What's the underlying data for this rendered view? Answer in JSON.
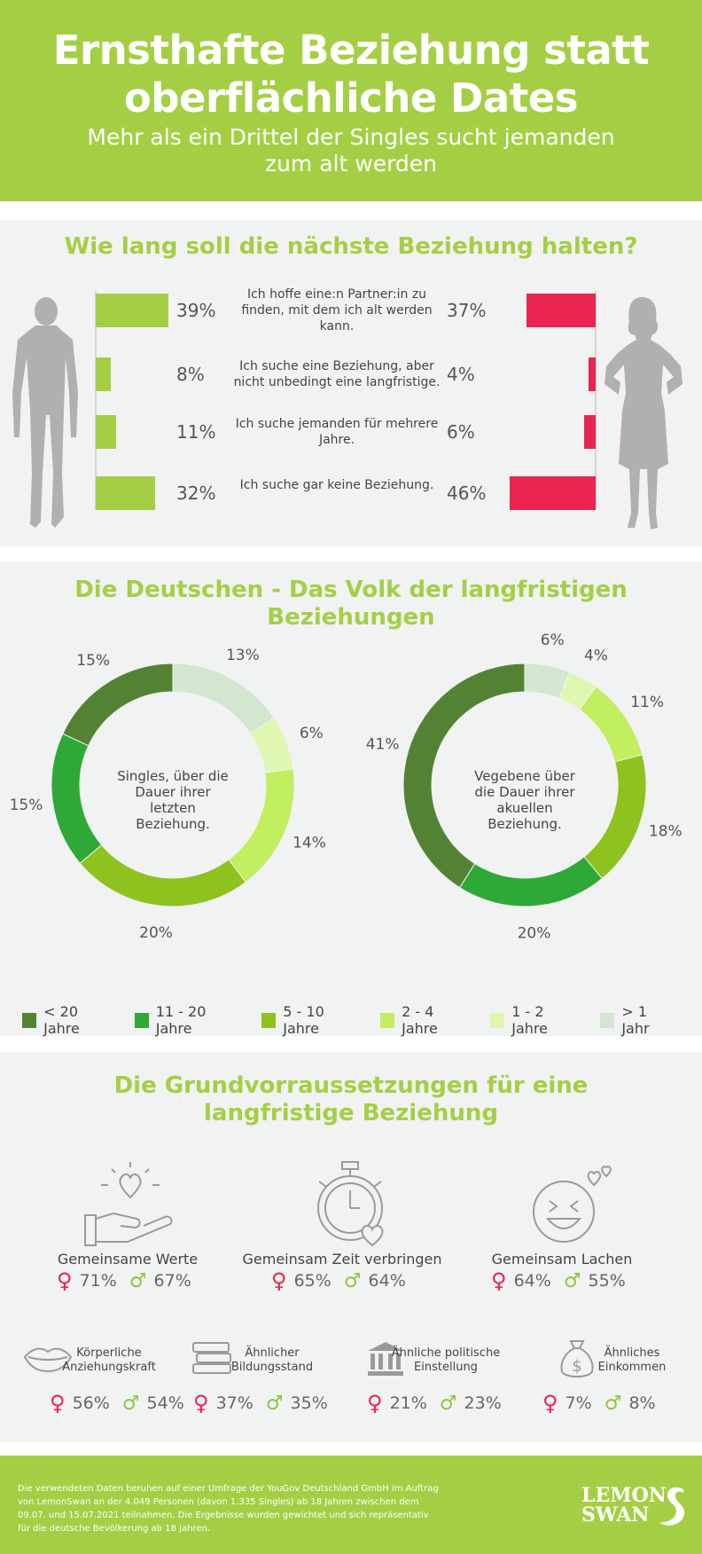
{
  "header": {
    "title_line1": "Ernsthafte Beziehung statt",
    "title_line2": "oberflächliche Dates",
    "subtitle_line1": "Mehr als ein Drittel der Singles sucht jemanden",
    "subtitle_line2": "zum alt werden"
  },
  "section1": {
    "title": "Wie lang soll die nächste Beziehung halten?",
    "rows": [
      {
        "text": "Ich hoffe eine:n Partner:in zu finden, mit dem ich alt werden kann.",
        "male": 39,
        "female": 37,
        "male_label": "39%",
        "female_label": "37%"
      },
      {
        "text": "Ich suche eine Beziehung, aber nicht unbedingt eine langfristige.",
        "male": 8,
        "female": 4,
        "male_label": "8%",
        "female_label": "4%"
      },
      {
        "text": "Ich suche jemanden für mehrere Jahre.",
        "male": 11,
        "female": 6,
        "male_label": "11%",
        "female_label": "6%"
      },
      {
        "text": "Ich suche gar keine Beziehung.",
        "male": 32,
        "female": 46,
        "male_label": "32%",
        "female_label": "46%"
      }
    ],
    "colors": {
      "male": "#a4cf45",
      "female": "#e8254f"
    }
  },
  "section2": {
    "title": "Die Deutschen - Das Volk der langfristigen Beziehungen",
    "donut1_center": "Singles, über die Dauer ihrer letzten Beziehung.",
    "donut2_center": "Vegebene über die Dauer ihrer akuellen Beziehung."
  },
  "chart_data": [
    {
      "type": "bar",
      "title": "Wie lang soll die nächste Beziehung halten?",
      "categories": [
        "Ich hoffe eine:n Partner:in zu finden, mit dem ich alt werden kann.",
        "Ich suche eine Beziehung, aber nicht unbedingt eine langfristige.",
        "Ich suche jemanden für mehrere Jahre.",
        "Ich suche gar keine Beziehung."
      ],
      "series": [
        {
          "values": [
            39,
            8,
            11,
            32
          ]
        },
        {
          "values": [
            37,
            4,
            6,
            46
          ]
        }
      ]
    },
    {
      "type": "pie",
      "title": "Singles, über die Dauer ihrer letzten Beziehung.",
      "categories": [
        "< 20 Jahre",
        "11 - 20 Jahre",
        "5 - 10 Jahre",
        "2 - 4 Jahre",
        "1 - 2 Jahre",
        "> 1 Jahr"
      ],
      "values": [
        15,
        15,
        20,
        14,
        6,
        13
      ],
      "labels": [
        "15%",
        "15%",
        "20%",
        "14%",
        "6%",
        "13%"
      ]
    },
    {
      "type": "pie",
      "title": "Vegebene über die Dauer ihrer akuellen Beziehung.",
      "categories": [
        "< 20 Jahre",
        "11 - 20 Jahre",
        "5 - 10 Jahre",
        "2 - 4 Jahre",
        "1 - 2 Jahre",
        "> 1 Jahr"
      ],
      "values": [
        41,
        20,
        18,
        11,
        4,
        6
      ],
      "labels": [
        "41%",
        "20%",
        "18%",
        "11%",
        "4%",
        "6%"
      ]
    }
  ],
  "legend": [
    {
      "label": "< 20 Jahre",
      "color": "#548235"
    },
    {
      "label": "11 - 20 Jahre",
      "color": "#2ea836"
    },
    {
      "label": "5 - 10 Jahre",
      "color": "#8dc21f"
    },
    {
      "label": "2 - 4 Jahre",
      "color": "#c2ef5f"
    },
    {
      "label": "1 - 2 Jahre",
      "color": "#e0f7b2"
    },
    {
      "label": "> 1 Jahr",
      "color": "#d2e6d0"
    }
  ],
  "section3": {
    "title_line1": "Die Grundvorraussetzungen für eine",
    "title_line2": "langfristige Beziehung",
    "big": [
      {
        "label": "Gemeinsame Werte",
        "female": "71%",
        "male": "67%"
      },
      {
        "label": "Gemeinsam Zeit verbringen",
        "female": "65%",
        "male": "64%"
      },
      {
        "label": "Gemeinsam Lachen",
        "female": "64%",
        "male": "55%"
      }
    ],
    "small": [
      {
        "line1": "Körperliche",
        "line2": "Anziehungskraft",
        "female": "56%",
        "male": "54%"
      },
      {
        "line1": "Ähnlicher",
        "line2": "Bildungsstand",
        "female": "37%",
        "male": "35%"
      },
      {
        "line1": "Ähnliche politische",
        "line2": "Einstellung",
        "female": "21%",
        "male": "23%"
      },
      {
        "line1": "Ähnliches",
        "line2": "Einkommen",
        "female": "7%",
        "male": "8%"
      }
    ],
    "female_symbol": "♀",
    "male_symbol": "♂"
  },
  "footer": {
    "note": "Die verwendeten Daten beruhen auf einer Umfrage der YouGov Deutschland GmbH im Auftrag von LemonSwan an der 4.049 Personen (davon 1.335 Singles) ab 18 Jahren zwischen dem 09.07. und 15.07.2021 teilnahmen. Die Ergebnisse wurden gewichtet und sich repräsentativ für die deutsche Bevölkerung ab 18 Jahren.",
    "logo_line1": "LEMON",
    "logo_line2": "SWAN"
  }
}
